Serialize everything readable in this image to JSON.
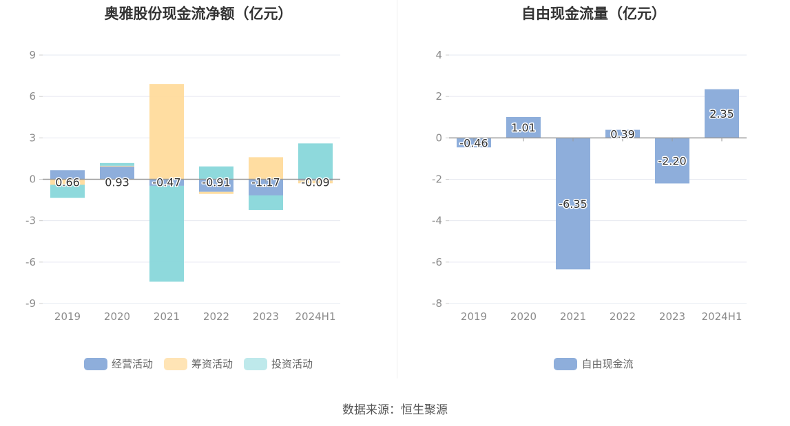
{
  "source_text": "数据来源：恒生聚源",
  "chart_data": [
    {
      "type": "bar",
      "stacked": true,
      "title": "奥雅股份现金流净额（亿元）",
      "categories": [
        "2019",
        "2020",
        "2021",
        "2022",
        "2023",
        "2024H1"
      ],
      "ylim": [
        -9,
        9
      ],
      "yticks": [
        9,
        6,
        3,
        0,
        -3,
        -6,
        -9
      ],
      "grid": true,
      "legend_position": "bottom",
      "series": [
        {
          "name": "经营活动",
          "color": "#8eaedb",
          "values": [
            0.66,
            0.93,
            -0.47,
            -0.91,
            -1.17,
            -0.09
          ],
          "labels": [
            "0.66",
            "0.93",
            "-0.47",
            "-0.91",
            "-1.17",
            "-0.09"
          ]
        },
        {
          "name": "筹资活动",
          "color": "#ffdb9c",
          "values": [
            -0.4,
            0.05,
            6.9,
            -0.15,
            1.6,
            -0.2
          ]
        },
        {
          "name": "投资活动",
          "color": "#88d7da",
          "values": [
            -0.95,
            0.2,
            -6.95,
            0.93,
            -1.05,
            2.6
          ]
        }
      ]
    },
    {
      "type": "bar",
      "title": "自由现金流量（亿元）",
      "categories": [
        "2019",
        "2020",
        "2021",
        "2022",
        "2023",
        "2024H1"
      ],
      "ylim": [
        -8,
        4
      ],
      "yticks": [
        4,
        2,
        0,
        -2,
        -4,
        -6,
        -8
      ],
      "grid": true,
      "legend_position": "bottom",
      "series": [
        {
          "name": "自由现金流",
          "color": "#8eaedb",
          "values": [
            -0.46,
            1.01,
            -6.35,
            0.39,
            -2.2,
            2.35
          ],
          "labels": [
            "-0.46",
            "1.01",
            "-6.35",
            "0.39",
            "-2.20",
            "2.35"
          ]
        }
      ]
    }
  ]
}
